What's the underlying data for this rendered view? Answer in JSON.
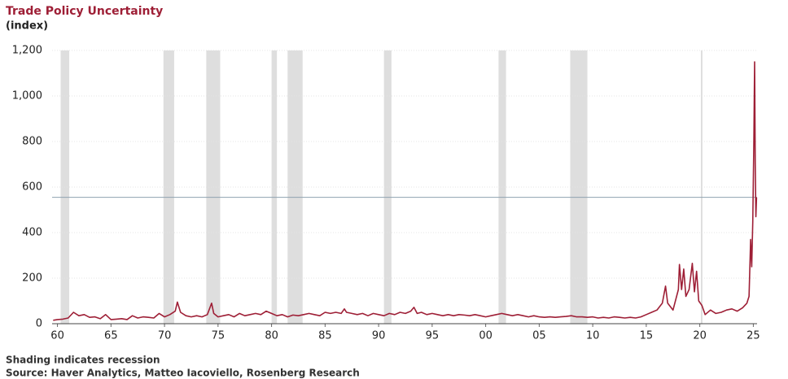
{
  "chart_data": {
    "type": "line",
    "title": "Trade Policy Uncertainty",
    "subtitle": "(index)",
    "notes": [
      "Shading indicates recession",
      "Source: Haver Analytics, Matteo Iacoviello, Rosenberg Research"
    ],
    "x": [
      1959.6,
      1960,
      1960.5,
      1961,
      1961.5,
      1962,
      1962.5,
      1963,
      1963.5,
      1964,
      1964.5,
      1965,
      1965.5,
      1966,
      1966.5,
      1967,
      1967.5,
      1968,
      1968.5,
      1969,
      1969.5,
      1970,
      1970.5,
      1971,
      1971.2,
      1971.5,
      1972,
      1972.5,
      1973,
      1973.5,
      1974,
      1974.4,
      1974.6,
      1975,
      1975.5,
      1976,
      1976.5,
      1977,
      1977.5,
      1978,
      1978.5,
      1979,
      1979.5,
      1980,
      1980.5,
      1981,
      1981.5,
      1982,
      1982.5,
      1983,
      1983.5,
      1984,
      1984.5,
      1985,
      1985.5,
      1986,
      1986.5,
      1986.8,
      1987,
      1987.5,
      1988,
      1988.5,
      1989,
      1989.5,
      1990,
      1990.5,
      1991,
      1991.5,
      1992,
      1992.5,
      1993,
      1993.3,
      1993.6,
      1994,
      1994.5,
      1995,
      1995.5,
      1996,
      1996.5,
      1997,
      1997.5,
      1998,
      1998.5,
      1999,
      1999.5,
      2000,
      2000.5,
      2001,
      2001.5,
      2002,
      2002.5,
      2003,
      2003.5,
      2004,
      2004.5,
      2005,
      2005.5,
      2006,
      2006.5,
      2007,
      2007.5,
      2008,
      2008.5,
      2009,
      2009.5,
      2010,
      2010.5,
      2011,
      2011.5,
      2012,
      2012.5,
      2013,
      2013.5,
      2014,
      2014.5,
      2015,
      2015.5,
      2016,
      2016.5,
      2016.8,
      2017,
      2017.5,
      2018,
      2018.1,
      2018.3,
      2018.5,
      2018.7,
      2019,
      2019.3,
      2019.5,
      2019.7,
      2019.9,
      2020.2,
      2020.5,
      2021,
      2021.5,
      2022,
      2022.5,
      2023,
      2023.5,
      2024,
      2024.4,
      2024.6,
      2024.75,
      2024.85,
      2024.95,
      2025.05,
      2025.12,
      2025.18,
      2025.24,
      2025.3
    ],
    "series": [
      {
        "color": "#9e1f36",
        "values": [
          15,
          18,
          20,
          25,
          50,
          35,
          40,
          28,
          30,
          22,
          40,
          18,
          20,
          22,
          18,
          35,
          25,
          30,
          28,
          25,
          45,
          30,
          40,
          55,
          95,
          50,
          35,
          30,
          35,
          30,
          40,
          90,
          45,
          30,
          35,
          40,
          30,
          45,
          35,
          40,
          45,
          40,
          55,
          45,
          35,
          40,
          30,
          38,
          35,
          40,
          45,
          40,
          35,
          50,
          45,
          50,
          45,
          65,
          50,
          45,
          40,
          45,
          35,
          45,
          40,
          35,
          45,
          40,
          50,
          45,
          55,
          72,
          45,
          50,
          40,
          45,
          40,
          35,
          40,
          35,
          40,
          38,
          35,
          40,
          35,
          30,
          35,
          40,
          45,
          40,
          35,
          40,
          35,
          30,
          35,
          30,
          28,
          30,
          28,
          30,
          32,
          35,
          30,
          30,
          28,
          30,
          25,
          28,
          25,
          30,
          28,
          25,
          28,
          25,
          30,
          40,
          50,
          60,
          90,
          165,
          90,
          60,
          150,
          260,
          150,
          240,
          120,
          150,
          265,
          140,
          230,
          100,
          80,
          40,
          60,
          45,
          50,
          60,
          65,
          55,
          70,
          90,
          120,
          370,
          250,
          450,
          800,
          1150,
          700,
          470,
          555
        ]
      }
    ],
    "recessions": [
      [
        1960.3,
        1961.1
      ],
      [
        1969.9,
        1970.9
      ],
      [
        1973.9,
        1975.2
      ],
      [
        1980.0,
        1980.5
      ],
      [
        1981.5,
        1982.9
      ],
      [
        1990.5,
        1991.2
      ],
      [
        2001.2,
        2001.9
      ],
      [
        2007.9,
        2009.5
      ],
      [
        2020.1,
        2020.25
      ]
    ],
    "reference_line": 555,
    "xlim": [
      1959.5,
      2025.35
    ],
    "ylim": [
      0,
      1200
    ],
    "xticks": [
      {
        "value": 1960,
        "label": "60"
      },
      {
        "value": 1965,
        "label": "65"
      },
      {
        "value": 1970,
        "label": "70"
      },
      {
        "value": 1975,
        "label": "75"
      },
      {
        "value": 1980,
        "label": "80"
      },
      {
        "value": 1985,
        "label": "85"
      },
      {
        "value": 1990,
        "label": "90"
      },
      {
        "value": 1995,
        "label": "95"
      },
      {
        "value": 2000,
        "label": "00"
      },
      {
        "value": 2005,
        "label": "05"
      },
      {
        "value": 2010,
        "label": "10"
      },
      {
        "value": 2015,
        "label": "15"
      },
      {
        "value": 2020,
        "label": "20"
      },
      {
        "value": 2025,
        "label": "25"
      }
    ],
    "yticks": [
      0,
      200,
      400,
      600,
      800,
      {
        "value": 1000,
        "label": "1,000"
      },
      {
        "value": 1200,
        "label": "1,200"
      }
    ],
    "grid": true
  }
}
